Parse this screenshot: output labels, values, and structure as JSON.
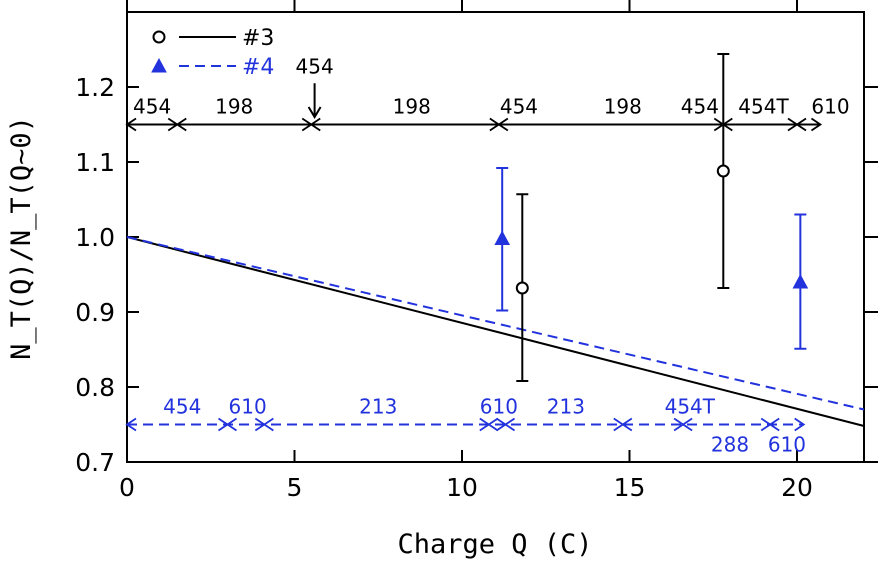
{
  "chart_data": {
    "type": "scatter",
    "xlabel": "Charge Q (C)",
    "ylabel": "N_T(Q)/N_T(Q~0)",
    "xlim": [
      0,
      22
    ],
    "ylim": [
      0.7,
      1.3
    ],
    "xticks": [
      {
        "value": 0,
        "label": "0"
      },
      {
        "value": 5,
        "label": "5"
      },
      {
        "value": 10,
        "label": "10"
      },
      {
        "value": 15,
        "label": "15"
      },
      {
        "value": 20,
        "label": "20"
      }
    ],
    "yticks": [
      {
        "value": 0.7,
        "label": "0.7"
      },
      {
        "value": 0.8,
        "label": "0.8"
      },
      {
        "value": 0.9,
        "label": "0.9"
      },
      {
        "value": 1.0,
        "label": "1.0"
      },
      {
        "value": 1.1,
        "label": "1.1"
      },
      {
        "value": 1.2,
        "label": "1.2"
      }
    ],
    "colors": {
      "s3": "#000000",
      "s4": "#2233dd"
    },
    "legend": {
      "placement": "top-left",
      "entries": [
        {
          "key": "s3",
          "label": "#3"
        },
        {
          "key": "s4",
          "label": "#4"
        }
      ]
    },
    "series": [
      {
        "key": "s3",
        "name": "#3",
        "marker": "open-circle",
        "points": [
          {
            "x": 11.8,
            "y": 0.932,
            "lo": 0.808,
            "hi": 1.057
          },
          {
            "x": 17.8,
            "y": 1.088,
            "lo": 0.932,
            "hi": 1.244
          }
        ],
        "fit": [
          {
            "x": 0,
            "y": 1.0
          },
          {
            "x": 22,
            "y": 0.748
          }
        ]
      },
      {
        "key": "s4",
        "name": "#4",
        "marker": "filled-triangle",
        "points": [
          {
            "x": 11.2,
            "y": 0.998,
            "lo": 0.902,
            "hi": 1.092
          },
          {
            "x": 20.1,
            "y": 0.94,
            "lo": 0.851,
            "hi": 1.03
          }
        ],
        "fit": [
          {
            "x": 0,
            "y": 1.0
          },
          {
            "x": 22,
            "y": 0.77
          }
        ]
      }
    ],
    "beam_segments": [
      {
        "key": "s3",
        "y": 1.15,
        "boundaries": [
          0,
          1.5,
          5.5,
          11.1,
          17.8,
          20.0,
          20.7
        ],
        "labels": [
          {
            "x": 0.75,
            "text": "454"
          },
          {
            "x": 3.2,
            "text": "198"
          },
          {
            "x": 8.5,
            "text": "198"
          },
          {
            "x": 11.7,
            "text": "454"
          },
          {
            "x": 14.8,
            "text": "198"
          },
          {
            "x": 17.1,
            "text": "454"
          },
          {
            "x": 19.0,
            "text": "454T"
          },
          {
            "x": 21.0,
            "text": "610"
          }
        ],
        "annotation": {
          "text": "454",
          "x": 5.6,
          "y_text": 1.218,
          "y_from": 1.205,
          "y_to": 1.16
        }
      },
      {
        "key": "s4",
        "y": 0.75,
        "boundaries": [
          0,
          3.0,
          4.1,
          10.8,
          11.3,
          14.8,
          16.6,
          19.2,
          20.2
        ],
        "labels": [
          {
            "x": 1.65,
            "text": "454",
            "above": true
          },
          {
            "x": 3.6,
            "text": "610",
            "above": true
          },
          {
            "x": 7.5,
            "text": "213",
            "above": true
          },
          {
            "x": 11.1,
            "text": "610",
            "above": true
          },
          {
            "x": 13.1,
            "text": "213",
            "above": true
          },
          {
            "x": 16.8,
            "text": "454T",
            "above": true
          },
          {
            "x": 18.0,
            "text": "288",
            "above": false
          },
          {
            "x": 19.7,
            "text": "610",
            "above": false
          }
        ]
      }
    ]
  }
}
